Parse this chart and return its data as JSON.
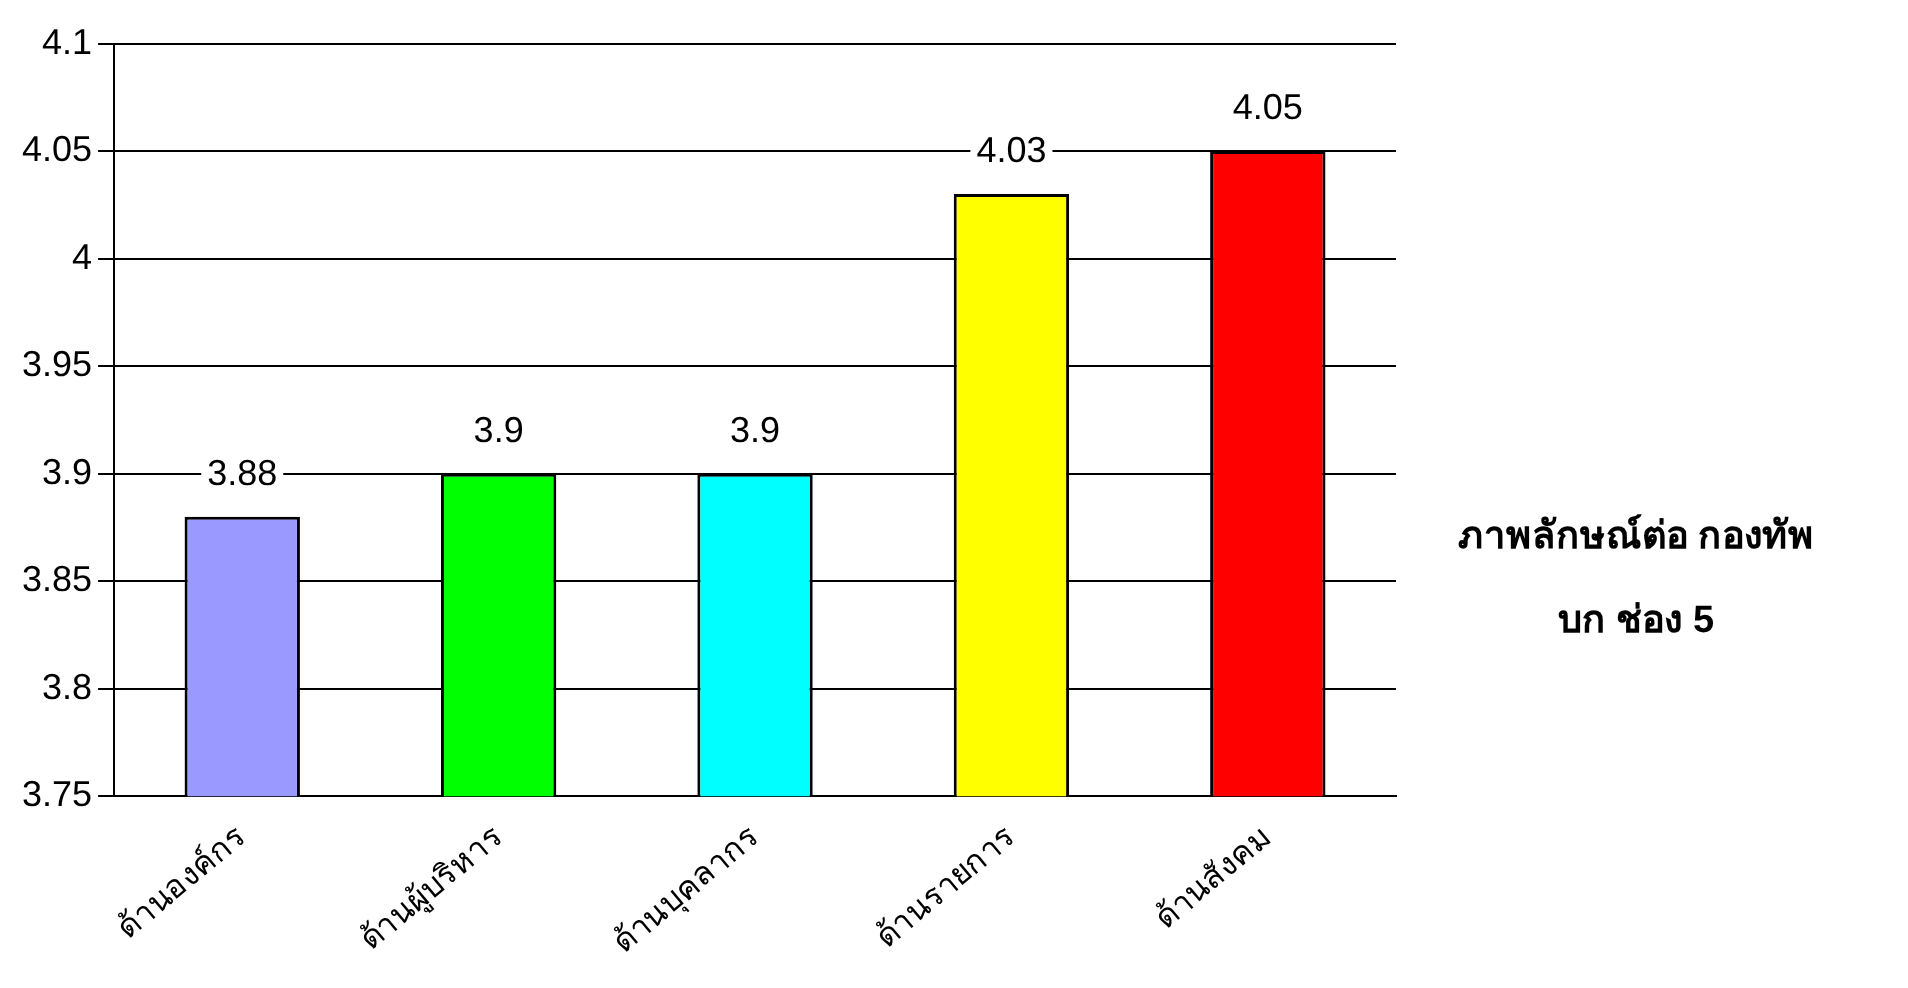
{
  "chart_data": {
    "type": "bar",
    "categories": [
      "ด้านองค์กร",
      "ด้านผู้บริหาร",
      "ด้านบุคลากร",
      "ด้านรายการ",
      "ด้านสังคม"
    ],
    "values": [
      3.88,
      3.9,
      3.9,
      4.03,
      4.05
    ],
    "colors": [
      "#9999ff",
      "#00ff00",
      "#00ffff",
      "#ffff00",
      "#ff0000"
    ],
    "ylim": [
      3.75,
      4.1
    ],
    "yticks": [
      3.75,
      3.8,
      3.85,
      3.9,
      3.95,
      4,
      4.05,
      4.1
    ],
    "grid": "y",
    "data_labels": true,
    "annotations": [
      "ภาพลักษณ์ต่อ กองทัพบก ช่อง 5"
    ]
  }
}
